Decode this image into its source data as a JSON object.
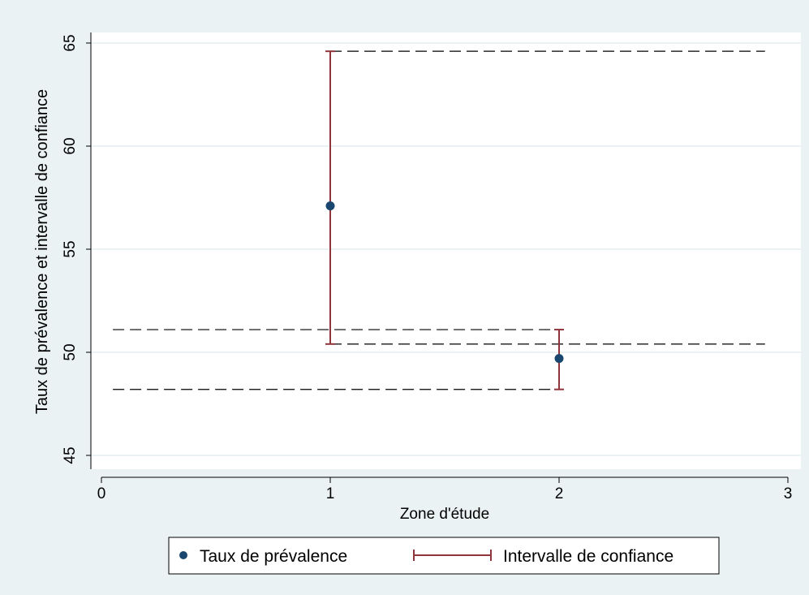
{
  "chart_data": {
    "type": "scatter",
    "title": "",
    "xlabel": "Zone d'étude",
    "ylabel": "Taux de prévalence et intervalle de confiance",
    "xlim": [
      0,
      3
    ],
    "ylim": [
      45,
      65
    ],
    "x_ticks": [
      0,
      1,
      2,
      3
    ],
    "y_ticks": [
      45,
      50,
      55,
      60,
      65
    ],
    "grid": "horizontal",
    "legend_position": "bottom",
    "series": [
      {
        "name": "Taux de prévalence",
        "kind": "point",
        "color": "#1a476f",
        "points": [
          {
            "x": 1,
            "y": 57.1
          },
          {
            "x": 2,
            "y": 49.7
          }
        ]
      },
      {
        "name": "Intervalle de confiance",
        "kind": "range-cap",
        "color": "#90353b",
        "ranges": [
          {
            "x": 1,
            "low": 50.4,
            "high": 64.6
          },
          {
            "x": 2,
            "low": 48.2,
            "high": 51.1
          }
        ]
      }
    ],
    "reference_lines": [
      {
        "y": 64.6,
        "x_from": 1,
        "x_to": 2.9
      },
      {
        "y": 51.1,
        "x_from": 0.05,
        "x_to": 2
      },
      {
        "y": 50.4,
        "x_from": 1,
        "x_to": 2.9
      },
      {
        "y": 48.2,
        "x_from": 0.05,
        "x_to": 2
      }
    ]
  },
  "colors": {
    "outer_background": "#eaf2f3",
    "plot_background": "#ffffff",
    "grid": "#eaf2f3",
    "axis": "#000000",
    "reference_line": "#000000"
  }
}
